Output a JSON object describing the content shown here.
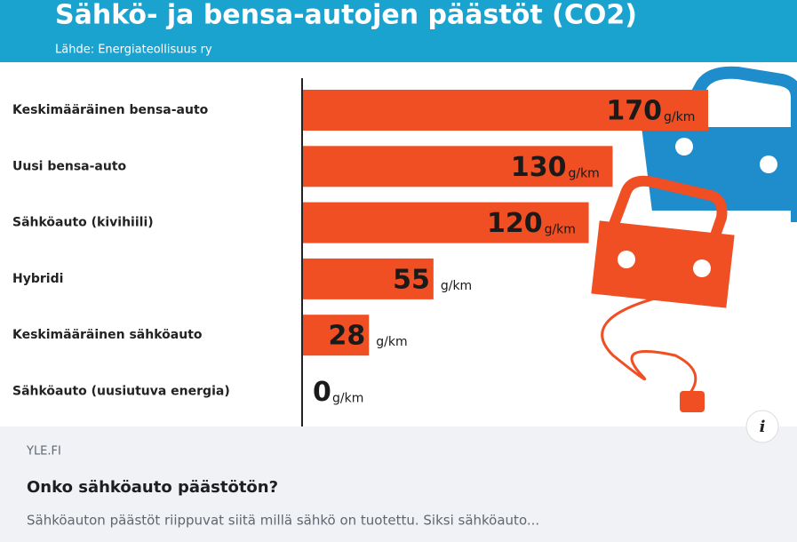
{
  "chart_data": {
    "type": "bar",
    "orientation": "horizontal",
    "title": "Sähkö- ja bensa-autojen päästöt (CO2)",
    "subtitle": "Lähde: Energiateollisuus ry",
    "categories": [
      "Keskimääräinen bensa-auto",
      "Uusi bensa-auto",
      "Sähköauto (kivihiili)",
      "Hybridi",
      "Keskimääräinen sähköauto",
      "Sähköauto (uusiutuva energia)"
    ],
    "values": [
      170,
      130,
      120,
      55,
      28,
      0
    ],
    "unit": "g/km",
    "color": "#f04e23",
    "xlim": [
      0,
      170
    ]
  },
  "info_button": "i",
  "link_preview": {
    "source": "YLE.FI",
    "title": "Onko sähköauto päästötön?",
    "description": "Sähköauton päästöt riippuvat siitä millä sähkö on tuotettu. Siksi sähköauto..."
  }
}
